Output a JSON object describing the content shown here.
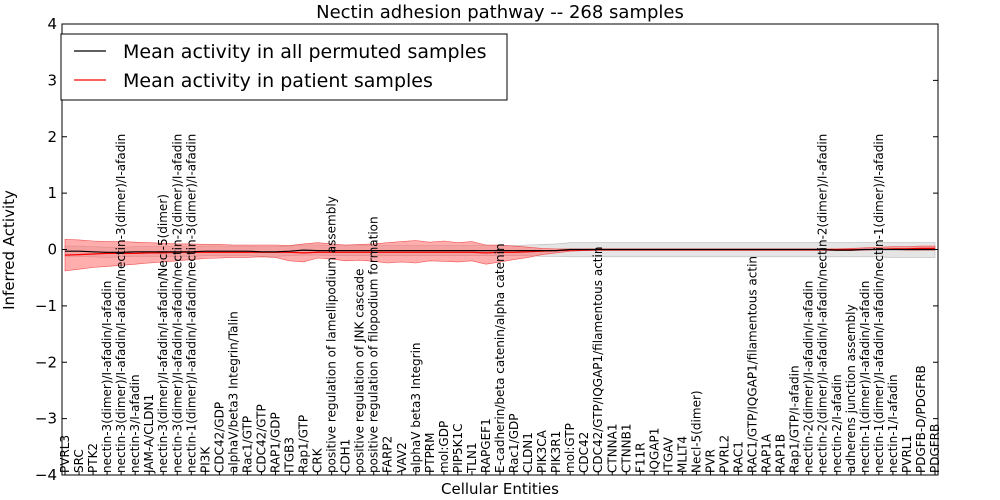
{
  "chart_data": {
    "type": "line",
    "title": "Nectin adhesion pathway -- 268 samples",
    "xlabel": "Cellular Entities",
    "ylabel": "Inferred Activity",
    "ylim": [
      -4,
      4
    ],
    "yticks": [
      -4,
      -3,
      -2,
      -1,
      0,
      1,
      2,
      3,
      4
    ],
    "grid": false,
    "legend_position": "top-left",
    "categories": [
      "PVRL3",
      "SRC",
      "PTK2",
      "nectin-3(dimer)/I-afadin/I-afadin",
      "nectin-3(dimer)/I-afadin/I-afadin/nectin-3(dimer)/I-afadin",
      "nectin-3/I-afadin",
      "JAM-A/CLDN1",
      "nectin-3(dimer)/I-afadin/I-afadin/Necl-5(dimer)",
      "nectin-3(dimer)/I-afadin/I-afadin/nectin-2(dimer)/I-afadin",
      "nectin-1(dimer)/I-afadin/I-afadin/nectin-3(dimer)/I-afadin",
      "PI3K",
      "CDC42/GDP",
      "alphaV/beta3 Integrin/Talin",
      "Rac1/GTP",
      "CDC42/GTP",
      "RAP1/GDP",
      "ITGB3",
      "Rap1/GTP",
      "CRK",
      "positive regulation of lamellipodium assembly",
      "CDH1",
      "positive regulation of JNK cascade",
      "positive regulation of filopodium formation",
      "FARP2",
      "VAV2",
      "alphaV beta3 Integrin",
      "PTPRM",
      "mol:GDP",
      "PIP5K1C",
      "TLN1",
      "RAPGEF1",
      "E-cadherin/beta catenin/alpha catenin",
      "Rac1/GDP",
      "CLDN1",
      "PIK3CA",
      "PIK3R1",
      "mol:GTP",
      "CDC42",
      "CDC42/GTP/IQGAP1/filamentous actin",
      "CTNNA1",
      "CTNNB1",
      "F11R",
      "IQGAP1",
      "ITGAV",
      "MLLT4",
      "Necl-5(dimer)",
      "PVR",
      "PVRL2",
      "RAC1",
      "RAC1/GTP/IQGAP1/filamentous actin",
      "RAP1A",
      "RAP1B",
      "Rap1/GTP/I-afadin",
      "nectin-2(dimer)/I-afadin/I-afadin",
      "nectin-2(dimer)/I-afadin/I-afadin/nectin-2(dimer)/I-afadin",
      "nectin-2/I-afadin",
      "adherens junction assembly",
      "nectin-1(dimer)/I-afadin/I-afadin",
      "nectin-1(dimer)/I-afadin/I-afadin/nectin-1(dimer)/I-afadin",
      "nectin-1/I-afadin",
      "PVRL1",
      "PDGFB-D/PDGFRB",
      "PDGFRB"
    ],
    "series": [
      {
        "name": "Mean activity in all permuted samples",
        "color": "#000000",
        "mean": [
          -0.03,
          -0.03,
          -0.04,
          -0.05,
          -0.05,
          -0.04,
          -0.04,
          -0.04,
          -0.04,
          -0.04,
          -0.03,
          -0.03,
          -0.03,
          -0.03,
          -0.04,
          -0.04,
          -0.03,
          -0.01,
          -0.02,
          -0.02,
          -0.02,
          -0.02,
          -0.02,
          -0.02,
          -0.02,
          -0.02,
          -0.02,
          -0.02,
          -0.02,
          -0.02,
          -0.02,
          -0.02,
          -0.02,
          -0.02,
          -0.02,
          -0.02,
          0.0,
          0.0,
          0.0,
          0.0,
          0.0,
          0.0,
          0.0,
          0.0,
          0.0,
          0.0,
          0.0,
          0.0,
          0.0,
          0.0,
          0.0,
          0.0,
          0.0,
          0.0,
          0.0,
          -0.01,
          -0.01,
          0.0,
          0.0,
          0.0,
          0.0,
          0.0,
          0.0
        ],
        "band_low": [
          -0.12,
          -0.12,
          -0.13,
          -0.14,
          -0.13,
          -0.12,
          -0.12,
          -0.12,
          -0.12,
          -0.12,
          -0.11,
          -0.11,
          -0.11,
          -0.11,
          -0.12,
          -0.12,
          -0.11,
          -0.1,
          -0.1,
          -0.11,
          -0.11,
          -0.11,
          -0.11,
          -0.11,
          -0.11,
          -0.11,
          -0.11,
          -0.11,
          -0.11,
          -0.11,
          -0.11,
          -0.11,
          -0.11,
          -0.11,
          -0.12,
          -0.12,
          -0.13,
          -0.13,
          -0.13,
          -0.13,
          -0.13,
          -0.13,
          -0.13,
          -0.13,
          -0.13,
          -0.13,
          -0.13,
          -0.13,
          -0.13,
          -0.13,
          -0.13,
          -0.13,
          -0.13,
          -0.13,
          -0.13,
          -0.13,
          -0.13,
          -0.13,
          -0.13,
          -0.14,
          -0.14,
          -0.14,
          -0.14
        ],
        "band_high": [
          0.06,
          0.06,
          0.05,
          0.04,
          0.04,
          0.05,
          0.05,
          0.05,
          0.05,
          0.05,
          0.06,
          0.06,
          0.06,
          0.06,
          0.05,
          0.05,
          0.06,
          0.08,
          0.08,
          0.07,
          0.07,
          0.07,
          0.07,
          0.07,
          0.07,
          0.07,
          0.07,
          0.07,
          0.07,
          0.07,
          0.07,
          0.07,
          0.07,
          0.08,
          0.09,
          0.1,
          0.12,
          0.12,
          0.12,
          0.12,
          0.12,
          0.12,
          0.12,
          0.12,
          0.12,
          0.12,
          0.12,
          0.12,
          0.12,
          0.12,
          0.12,
          0.12,
          0.12,
          0.12,
          0.12,
          0.12,
          0.12,
          0.12,
          0.12,
          0.12,
          0.12,
          0.12,
          0.12
        ]
      },
      {
        "name": "Mean activity in patient samples",
        "color": "#ff0000",
        "mean": [
          -0.1,
          -0.09,
          -0.08,
          -0.07,
          -0.07,
          -0.07,
          -0.06,
          -0.06,
          -0.05,
          -0.05,
          -0.05,
          -0.05,
          -0.05,
          -0.05,
          -0.05,
          -0.05,
          -0.05,
          -0.06,
          -0.05,
          -0.05,
          -0.05,
          -0.05,
          -0.05,
          -0.05,
          -0.05,
          -0.05,
          -0.05,
          -0.05,
          -0.05,
          -0.05,
          -0.06,
          -0.05,
          -0.05,
          -0.04,
          -0.03,
          -0.02,
          -0.01,
          -0.01,
          0.0,
          0.0,
          0.0,
          0.0,
          0.0,
          0.0,
          0.0,
          0.0,
          0.0,
          0.0,
          0.0,
          0.0,
          0.0,
          0.0,
          0.0,
          0.0,
          0.0,
          0.0,
          0.0,
          0.0,
          0.0,
          0.01,
          0.01,
          0.02,
          0.02
        ],
        "band_low": [
          -0.38,
          -0.35,
          -0.32,
          -0.3,
          -0.28,
          -0.26,
          -0.24,
          -0.22,
          -0.2,
          -0.18,
          -0.16,
          -0.15,
          -0.14,
          -0.14,
          -0.13,
          -0.14,
          -0.2,
          -0.22,
          -0.15,
          -0.17,
          -0.2,
          -0.19,
          -0.21,
          -0.24,
          -0.22,
          -0.24,
          -0.2,
          -0.21,
          -0.22,
          -0.2,
          -0.26,
          -0.22,
          -0.18,
          -0.14,
          -0.09,
          -0.06,
          -0.03,
          -0.02,
          -0.02,
          -0.02,
          -0.02,
          -0.02,
          -0.02,
          -0.02,
          -0.02,
          -0.02,
          -0.02,
          -0.02,
          -0.02,
          -0.02,
          -0.02,
          -0.02,
          -0.02,
          -0.02,
          -0.02,
          -0.02,
          -0.02,
          -0.01,
          0.0,
          0.0,
          -0.01,
          -0.01,
          -0.01
        ],
        "band_high": [
          0.18,
          0.17,
          0.15,
          0.14,
          0.14,
          0.13,
          0.12,
          0.11,
          0.1,
          0.1,
          0.09,
          0.09,
          0.08,
          0.08,
          0.08,
          0.08,
          0.07,
          0.1,
          0.12,
          0.1,
          0.08,
          0.09,
          0.1,
          0.12,
          0.14,
          0.16,
          0.13,
          0.15,
          0.12,
          0.14,
          0.08,
          0.08,
          0.06,
          0.04,
          0.02,
          0.01,
          0.01,
          0.01,
          0.01,
          0.01,
          0.01,
          0.01,
          0.01,
          0.01,
          0.01,
          0.01,
          0.01,
          0.01,
          0.01,
          0.01,
          0.01,
          0.01,
          0.01,
          0.01,
          0.01,
          0.01,
          0.02,
          0.03,
          0.04,
          0.05,
          0.05,
          0.06,
          0.06
        ]
      }
    ]
  }
}
